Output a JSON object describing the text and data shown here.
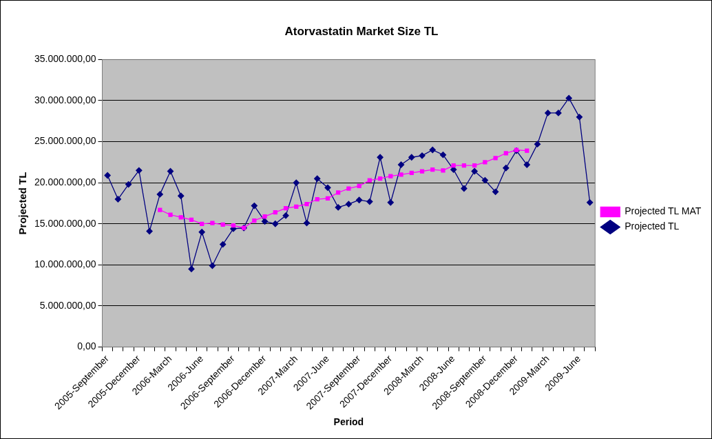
{
  "chart_data": {
    "type": "line",
    "title": "Atorvastatin Market Size TL",
    "xlabel": "Period",
    "ylabel": "Projected TL",
    "categories": [
      "2005-September",
      null,
      null,
      "2005-December",
      null,
      null,
      "2006-March",
      null,
      null,
      "2006-June",
      null,
      null,
      "2006-September",
      null,
      null,
      "2006-December",
      null,
      null,
      "2007-March",
      null,
      null,
      "2007-June",
      null,
      null,
      "2007-September",
      null,
      null,
      "2007-December",
      null,
      null,
      "2008-March",
      null,
      null,
      "2008-June",
      null,
      null,
      "2008-September",
      null,
      null,
      "2008-December",
      null,
      null,
      "2009-March",
      null,
      null,
      "2009-June",
      null
    ],
    "series": [
      {
        "name": "Projected TL",
        "color": "#000080",
        "marker": "diamond",
        "values": [
          20900000,
          18000000,
          19800000,
          21500000,
          14100000,
          18600000,
          21400000,
          18400000,
          9500000,
          14000000,
          9900000,
          12500000,
          14400000,
          14500000,
          17200000,
          15300000,
          15000000,
          16000000,
          20000000,
          15100000,
          20500000,
          19400000,
          17000000,
          17400000,
          17900000,
          17700000,
          23100000,
          17600000,
          22200000,
          23100000,
          23300000,
          24000000,
          23400000,
          21600000,
          19300000,
          21400000,
          20300000,
          18900000,
          21800000,
          23900000,
          22200000,
          24700000,
          28500000,
          28500000,
          30300000,
          28000000,
          17600000
        ]
      },
      {
        "name": "Projected TL MAT",
        "color": "#ff00ff",
        "marker": "square",
        "values": [
          null,
          null,
          null,
          null,
          null,
          16700000,
          16100000,
          15800000,
          15500000,
          15000000,
          15100000,
          14900000,
          14800000,
          14500000,
          15400000,
          15900000,
          16400000,
          16900000,
          17100000,
          17400000,
          18000000,
          18100000,
          18800000,
          19300000,
          19600000,
          20300000,
          20500000,
          20800000,
          21000000,
          21200000,
          21400000,
          21600000,
          21500000,
          22100000,
          22100000,
          22100000,
          22500000,
          23000000,
          23600000,
          24000000,
          23900000,
          null,
          null,
          null,
          null,
          null,
          null
        ]
      }
    ],
    "ylim": [
      0,
      35000000
    ],
    "yticks": [
      {
        "value": 0,
        "label": "0,00"
      },
      {
        "value": 5000000,
        "label": "5.000.000,00"
      },
      {
        "value": 10000000,
        "label": "10.000.000,00"
      },
      {
        "value": 15000000,
        "label": "15.000.000,00"
      },
      {
        "value": 20000000,
        "label": "20.000.000,00"
      },
      {
        "value": 25000000,
        "label": "25.000.000,00"
      },
      {
        "value": 30000000,
        "label": "30.000.000,00"
      },
      {
        "value": 35000000,
        "label": "35.000.000,00"
      }
    ],
    "grid": "y",
    "legend": "right"
  }
}
